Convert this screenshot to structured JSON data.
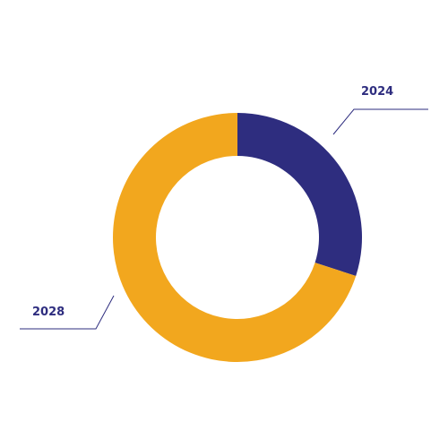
{
  "chart_data": {
    "type": "pie",
    "donut": true,
    "title": "",
    "slices": [
      {
        "label": "2024",
        "value": 30,
        "color": "#2e2d7f"
      },
      {
        "label": "2028",
        "value": 70,
        "color": "#f2a71e"
      }
    ],
    "legend": "none",
    "label_color": "#2e2d7f",
    "leader_line_color": "#2e2d7f",
    "background": "#ffffff"
  }
}
